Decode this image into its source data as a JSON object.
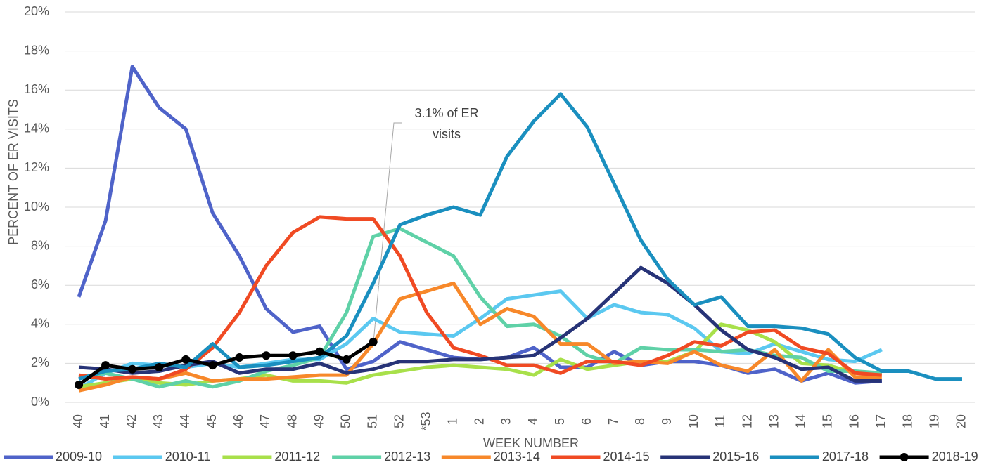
{
  "chart_data": {
    "type": "line",
    "y_label": "PERCENT OF ER VISITS",
    "x_label": "WEEK NUMBER",
    "annotation": "3.1% of ER visits",
    "categories": [
      "40",
      "41",
      "42",
      "43",
      "44",
      "45",
      "46",
      "47",
      "48",
      "49",
      "50",
      "51",
      "52",
      "*53",
      "1",
      "2",
      "3",
      "4",
      "5",
      "6",
      "7",
      "8",
      "9",
      "10",
      "11",
      "12",
      "13",
      "14",
      "15",
      "16",
      "17",
      "18",
      "19",
      "20"
    ],
    "ylim": [
      0,
      20
    ],
    "yticks": [
      {
        "value": 0,
        "label": "0%"
      },
      {
        "value": 2,
        "label": "2%"
      },
      {
        "value": 4,
        "label": "4%"
      },
      {
        "value": 6,
        "label": "6%"
      },
      {
        "value": 8,
        "label": "8%"
      },
      {
        "value": 10,
        "label": "10%"
      },
      {
        "value": 12,
        "label": "12%"
      },
      {
        "value": 14,
        "label": "14%"
      },
      {
        "value": 16,
        "label": "16%"
      },
      {
        "value": 18,
        "label": "18%"
      },
      {
        "value": 20,
        "label": "20%"
      }
    ],
    "grid": true,
    "legend": "bottom",
    "series": [
      {
        "name": "2009-10",
        "color": "#4f63c9",
        "values": [
          5.4,
          9.3,
          17.2,
          15.1,
          14.0,
          9.7,
          7.5,
          4.8,
          3.6,
          3.9,
          1.7,
          2.1,
          3.1,
          2.7,
          2.3,
          2.2,
          2.3,
          2.8,
          1.8,
          1.8,
          2.6,
          1.9,
          2.1,
          2.1,
          1.9,
          1.5,
          1.7,
          1.1,
          1.5,
          1.0,
          1.1,
          null,
          null,
          null
        ]
      },
      {
        "name": "2010-11",
        "color": "#5bc8f0",
        "values": [
          0.7,
          1.5,
          2.0,
          1.9,
          1.8,
          2.0,
          1.8,
          2.0,
          2.2,
          2.2,
          3.0,
          4.3,
          3.6,
          3.5,
          3.4,
          4.3,
          5.3,
          5.5,
          5.7,
          4.3,
          5.0,
          4.6,
          4.5,
          3.8,
          2.6,
          2.5,
          3.0,
          2.6,
          2.2,
          2.1,
          2.7,
          null,
          null,
          null
        ]
      },
      {
        "name": "2011-12",
        "color": "#a8e04a",
        "values": [
          0.8,
          1.0,
          1.2,
          1.0,
          0.9,
          1.1,
          1.2,
          1.4,
          1.1,
          1.1,
          1.0,
          1.4,
          1.6,
          1.8,
          1.9,
          1.8,
          1.7,
          1.4,
          2.2,
          1.7,
          1.9,
          2.1,
          2.1,
          2.6,
          4.0,
          3.7,
          3.1,
          2.0,
          1.9,
          1.5,
          1.5,
          null,
          null,
          null
        ]
      },
      {
        "name": "2012-13",
        "color": "#5fd1a7",
        "values": [
          1.3,
          1.5,
          1.2,
          0.8,
          1.1,
          0.8,
          1.1,
          1.6,
          1.9,
          2.3,
          4.6,
          8.5,
          8.9,
          8.2,
          7.5,
          5.4,
          3.9,
          4.0,
          3.4,
          2.4,
          2.0,
          2.8,
          2.7,
          2.7,
          2.6,
          2.7,
          2.4,
          2.3,
          1.6,
          1.6,
          1.5,
          null,
          null,
          null
        ]
      },
      {
        "name": "2013-14",
        "color": "#f7882a",
        "values": [
          0.6,
          0.9,
          1.3,
          1.2,
          1.5,
          1.1,
          1.2,
          1.2,
          1.3,
          1.4,
          1.4,
          3.0,
          5.3,
          5.7,
          6.1,
          4.0,
          4.8,
          4.4,
          3.0,
          3.0,
          2.0,
          2.1,
          2.0,
          2.6,
          1.9,
          1.6,
          2.7,
          1.1,
          2.7,
          1.3,
          1.3,
          null,
          null,
          null
        ]
      },
      {
        "name": "2014-15",
        "color": "#f04a23",
        "values": [
          1.4,
          1.2,
          1.3,
          1.2,
          1.7,
          2.8,
          4.6,
          7.0,
          8.7,
          9.5,
          9.4,
          9.4,
          7.5,
          4.6,
          2.8,
          2.4,
          1.9,
          1.9,
          1.5,
          2.1,
          2.1,
          1.9,
          2.4,
          3.1,
          2.9,
          3.6,
          3.7,
          2.8,
          2.5,
          1.5,
          1.4,
          null,
          null,
          null
        ]
      },
      {
        "name": "2015-16",
        "color": "#273377",
        "values": [
          1.8,
          1.7,
          1.5,
          1.6,
          1.9,
          2.1,
          1.5,
          1.7,
          1.7,
          2.0,
          1.5,
          1.7,
          2.1,
          2.1,
          2.2,
          2.2,
          2.3,
          2.4,
          3.3,
          4.3,
          5.6,
          6.9,
          6.1,
          5.0,
          3.7,
          2.7,
          2.3,
          1.7,
          1.8,
          1.1,
          1.1,
          null,
          null,
          null
        ]
      },
      {
        "name": "2017-18",
        "color": "#1a8fbf",
        "values": [
          1.2,
          1.6,
          1.7,
          2.0,
          1.8,
          3.0,
          1.8,
          1.9,
          2.1,
          2.3,
          3.4,
          6.1,
          9.1,
          9.6,
          10.0,
          9.6,
          12.6,
          14.4,
          15.8,
          14.1,
          11.2,
          8.3,
          6.3,
          5.0,
          5.4,
          3.9,
          3.9,
          3.8,
          3.5,
          2.3,
          1.6,
          1.6,
          1.2,
          1.2
        ]
      },
      {
        "name": "2018-19",
        "color": "#000000",
        "markers": true,
        "values": [
          0.9,
          1.9,
          1.7,
          1.8,
          2.2,
          1.9,
          2.3,
          2.4,
          2.4,
          2.6,
          2.2,
          3.1,
          null,
          null,
          null,
          null,
          null,
          null,
          null,
          null,
          null,
          null,
          null,
          null,
          null,
          null,
          null,
          null,
          null,
          null,
          null,
          null,
          null,
          null
        ]
      }
    ]
  }
}
